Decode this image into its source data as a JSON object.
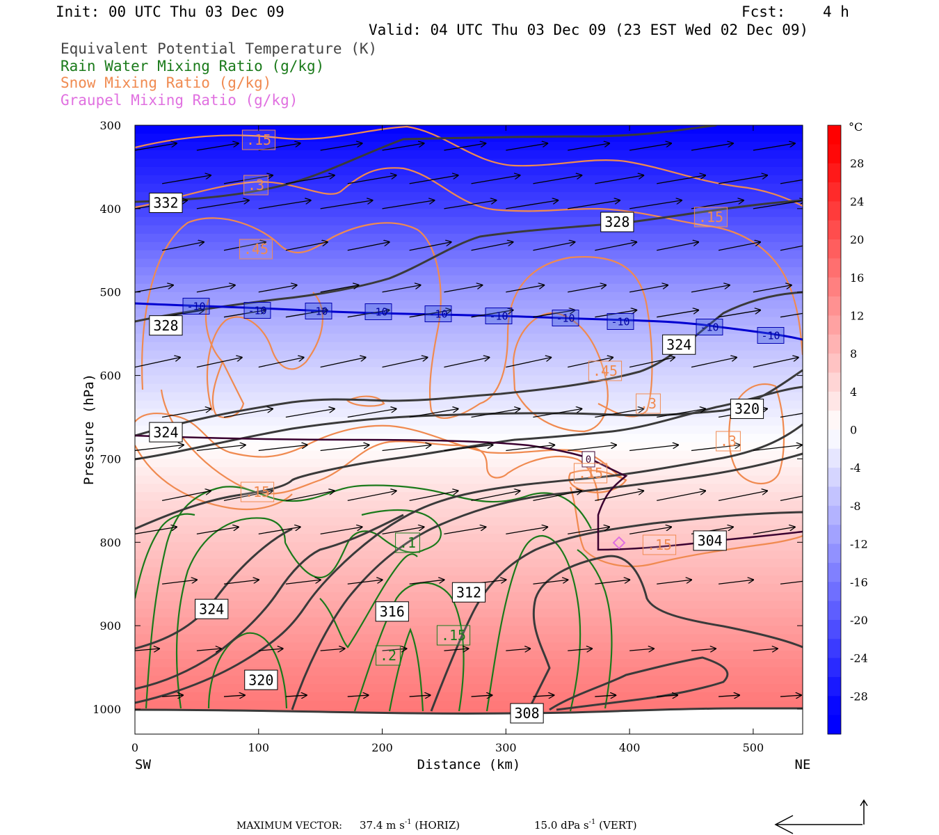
{
  "header": {
    "init": "Init: 00 UTC Thu 03 Dec 09",
    "fcst_label": "Fcst:",
    "fcst_value": "4 h",
    "valid": "Valid: 04 UTC Thu 03 Dec 09 (23 EST Wed 02 Dec 09)"
  },
  "fields": [
    {
      "label": "Equivalent Potential Temperature (K)",
      "color": "#444444"
    },
    {
      "label": "Rain Water Mixing Ratio (g/kg)",
      "color": "#1a7a1a"
    },
    {
      "label": "Snow Mixing Ratio (g/kg)",
      "color": "#f08a50"
    },
    {
      "label": "Graupel Mixing Ratio (g/kg)",
      "color": "#e070e0"
    }
  ],
  "footer": {
    "max_vector": "MAXIMUM VECTOR:",
    "horiz_value": "37.4 m s",
    "horiz_exp": "-1",
    "horiz_tag": "(HORIZ)",
    "vert_value": "15.0 dPa s",
    "vert_exp": "-1",
    "vert_tag": "(VERT)"
  },
  "chart_data": {
    "type": "heatmap",
    "description_units": {
      "x": "km",
      "y": "hPa",
      "fill": "°C"
    },
    "xlabel": "Distance (km)",
    "ylabel": "Pressure (hPa)",
    "xlim": [
      0,
      540
    ],
    "ylim": [
      1030,
      300
    ],
    "x_ticks": [
      0,
      100,
      200,
      300,
      400,
      500
    ],
    "y_ticks": [
      300,
      400,
      500,
      600,
      700,
      800,
      900,
      1000
    ],
    "x_end_labels": {
      "left": "SW",
      "right": "NE"
    },
    "colorbar": {
      "unit": "°C",
      "ticks": [
        28,
        24,
        20,
        16,
        12,
        8,
        4,
        0,
        -4,
        -8,
        -12,
        -16,
        -20,
        -24,
        -28
      ],
      "range": [
        -32,
        32
      ]
    },
    "temperature_profile_C": [
      {
        "p": 300,
        "t": -30
      },
      {
        "p": 400,
        "t": -22
      },
      {
        "p": 500,
        "t": -12
      },
      {
        "p": 600,
        "t": -5
      },
      {
        "p": 680,
        "t": 0
      },
      {
        "p": 760,
        "t": 5
      },
      {
        "p": 850,
        "t": 9
      },
      {
        "p": 950,
        "t": 14
      },
      {
        "p": 1000,
        "t": 16
      }
    ],
    "theta_e_K": {
      "levels": [
        304,
        308,
        312,
        316,
        320,
        324,
        328,
        332
      ],
      "labels": [
        {
          "text": "332",
          "x": 25,
          "p": 393
        },
        {
          "text": "328",
          "x": 390,
          "p": 416
        },
        {
          "text": "328",
          "x": 25,
          "p": 540
        },
        {
          "text": "324",
          "x": 440,
          "p": 563
        },
        {
          "text": "324",
          "x": 25,
          "p": 668
        },
        {
          "text": "320",
          "x": 495,
          "p": 640
        },
        {
          "text": "304",
          "x": 465,
          "p": 798
        },
        {
          "text": "312",
          "x": 270,
          "p": 860
        },
        {
          "text": "324",
          "x": 62,
          "p": 880
        },
        {
          "text": "316",
          "x": 208,
          "p": 883
        },
        {
          "text": "320",
          "x": 102,
          "p": 965
        },
        {
          "text": "308",
          "x": 317,
          "p": 1005
        }
      ]
    },
    "isotherm_minus10_labels": [
      "-10",
      "-10",
      "-10",
      "-10",
      "-10",
      "-10",
      "-10",
      "-10",
      "-10",
      "-10",
      "-10"
    ],
    "freezing_level_label": "0",
    "snow_labels": [
      ".15",
      ".3",
      ".45",
      ".45",
      ".15",
      ".3",
      ".3",
      ".15",
      ".15",
      ".15"
    ],
    "rain_labels": [
      ".1",
      ".2",
      ".15"
    ],
    "series": [
      {
        "name": "Equivalent Potential Temperature (K)"
      },
      {
        "name": "Rain Water Mixing Ratio (g/kg)"
      },
      {
        "name": "Snow Mixing Ratio (g/kg)"
      },
      {
        "name": "Graupel Mixing Ratio (g/kg)"
      }
    ]
  }
}
